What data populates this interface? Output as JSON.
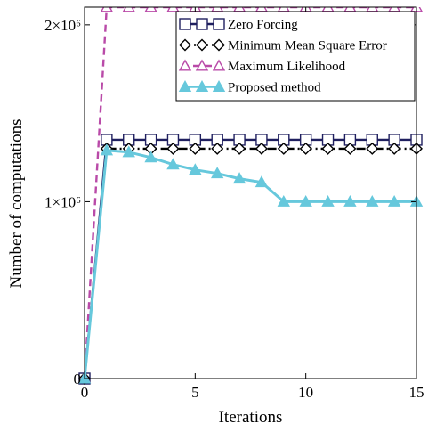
{
  "chart_data": {
    "type": "line",
    "xlabel": "Iterations",
    "ylabel": "Number of computations",
    "xlim": [
      0,
      15
    ],
    "ylim": [
      0,
      2100000
    ],
    "grid": false,
    "legend_position": "top-right",
    "x_ticks": [
      {
        "value": 0,
        "label": "0"
      },
      {
        "value": 5,
        "label": "5"
      },
      {
        "value": 10,
        "label": "10"
      },
      {
        "value": 15,
        "label": "15"
      }
    ],
    "y_ticks": [
      {
        "value": 0,
        "label": "0"
      },
      {
        "value": 1000000,
        "label": "1×10⁶"
      },
      {
        "value": 2000000,
        "label": "2×10⁶"
      }
    ],
    "series": [
      {
        "name": "Zero Forcing",
        "color": "#1f1f5f",
        "line_style": "solid",
        "marker": "square",
        "marker_fill": "none",
        "x": [
          0,
          1,
          2,
          3,
          4,
          5,
          6,
          7,
          8,
          9,
          10,
          11,
          12,
          13,
          14,
          15
        ],
        "y": [
          0,
          1350000,
          1350000,
          1350000,
          1350000,
          1350000,
          1350000,
          1350000,
          1350000,
          1350000,
          1350000,
          1350000,
          1350000,
          1350000,
          1350000,
          1350000
        ]
      },
      {
        "name": "Minimum Mean Square Error",
        "color": "#000000",
        "line_style": "dashdot",
        "marker": "diamond",
        "marker_fill": "none",
        "x": [
          0,
          1,
          2,
          3,
          4,
          5,
          6,
          7,
          8,
          9,
          10,
          11,
          12,
          13,
          14,
          15
        ],
        "y": [
          0,
          1300000,
          1300000,
          1300000,
          1300000,
          1300000,
          1300000,
          1300000,
          1300000,
          1300000,
          1300000,
          1300000,
          1300000,
          1300000,
          1300000,
          1300000
        ]
      },
      {
        "name": "Maximum Likelihood",
        "color": "#b94aa8",
        "line_style": "dashed",
        "marker": "triangle",
        "marker_fill": "none",
        "x": [
          0,
          1,
          2,
          3,
          4,
          5,
          6,
          7,
          8,
          9,
          10,
          11,
          12,
          13,
          14,
          15
        ],
        "y": [
          0,
          2100000,
          2100000,
          2100000,
          2100000,
          2100000,
          2100000,
          2100000,
          2100000,
          2100000,
          2100000,
          2100000,
          2100000,
          2100000,
          2100000,
          2100000
        ]
      },
      {
        "name": "Proposed method",
        "color": "#66c8dc",
        "line_style": "solid",
        "marker": "triangle",
        "marker_fill": "filled",
        "x": [
          0,
          1,
          2,
          3,
          4,
          5,
          6,
          7,
          8,
          9,
          10,
          11,
          12,
          13,
          14,
          15
        ],
        "y": [
          0,
          1290000,
          1280000,
          1250000,
          1210000,
          1180000,
          1160000,
          1130000,
          1110000,
          1000000,
          1000000,
          1000000,
          1000000,
          1000000,
          1000000,
          1000000
        ]
      }
    ]
  }
}
